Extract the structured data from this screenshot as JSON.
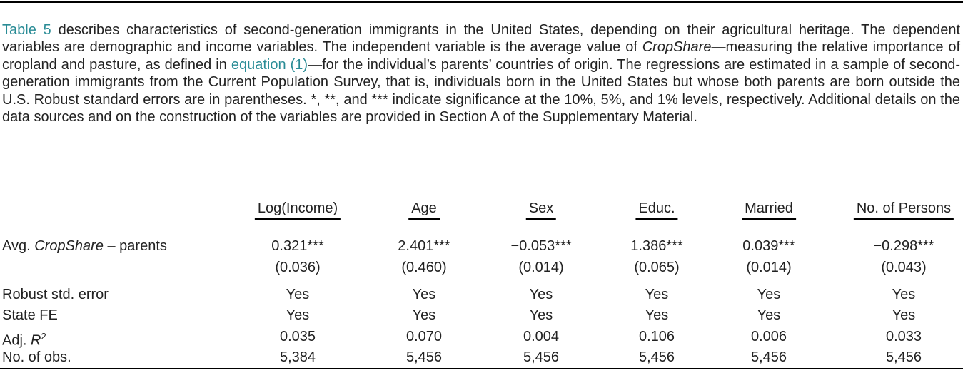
{
  "caption": [
    "Table 5",
    " describes characteristics of second-generation immigrants in the United States, depending on their agricultural heritage. The dependent variables are demographic and income variables. The independent variable is the average value of ",
    "CropShare",
    "—measuring the relative importance of cropland and pasture, as defined in ",
    "equation (1)",
    "—for the individual’s parents’ countries of origin. The regressions are estimated in a sample of second-generation immigrants from the Current Population Survey, that is, individuals born in the United States but whose both parents are born outside the U.S. Robust standard errors are in parentheses. *, **, and *** indicate significance at the 10%, 5%, and 1% levels, respectively. Additional details on the data sources and on the construction of the variables are provided in Section A of the Supplementary Material."
  ],
  "table": {
    "header": [
      "Log(Income)",
      "Age",
      "Sex",
      "Educ.",
      "Married",
      "No. of Persons"
    ],
    "rows": [
      {
        "label": [
          "Avg. ",
          "CropShare",
          " – parents"
        ],
        "values": [
          "0.321***",
          "2.401***",
          "−0.053***",
          "1.386***",
          "0.039***",
          "−0.298***"
        ],
        "se": [
          "(0.036)",
          "(0.460)",
          "(0.014)",
          "(0.065)",
          "(0.014)",
          "(0.043)"
        ]
      },
      {
        "label": "Robust std. error",
        "values": [
          "Yes",
          "Yes",
          "Yes",
          "Yes",
          "Yes",
          "Yes"
        ]
      },
      {
        "label": "State FE",
        "values": [
          "Yes",
          "Yes",
          "Yes",
          "Yes",
          "Yes",
          "Yes"
        ]
      },
      {
        "label": [
          "Adj. ",
          "R",
          "2"
        ],
        "values": [
          "0.035",
          "0.070",
          "0.004",
          "0.106",
          "0.006",
          "0.033"
        ]
      },
      {
        "label": "No. of obs.",
        "values": [
          "5,384",
          "5,456",
          "5,456",
          "5,456",
          "5,456",
          "5,456"
        ]
      }
    ]
  }
}
